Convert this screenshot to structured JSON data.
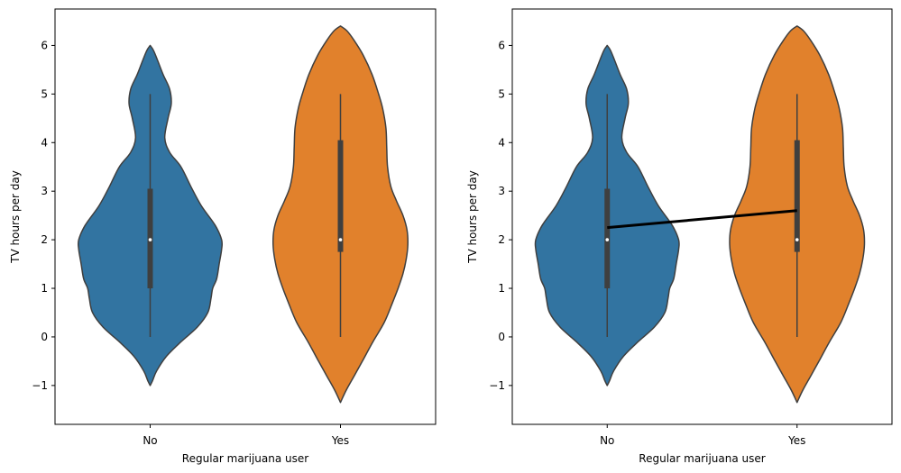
{
  "chart_data": [
    {
      "type": "violin",
      "xlabel": "Regular marijuana user",
      "ylabel": "TV hours per day",
      "categories": [
        "No",
        "Yes"
      ],
      "ylim": [
        -1.8,
        6.75
      ],
      "yticks": [
        "−1",
        "0",
        "1",
        "2",
        "3",
        "4",
        "5",
        "6"
      ],
      "colors": [
        "#3274a1",
        "#e1812c"
      ],
      "violins": [
        {
          "category": "No",
          "min": -1.0,
          "max": 6.0,
          "median": 2.0,
          "q1": 1.0,
          "q3": 3.05,
          "whisker_low": 0.0,
          "whisker_high": 5.0,
          "density": [
            [
              -1.0,
              0.0
            ],
            [
              -0.9,
              0.03
            ],
            [
              -0.7,
              0.08
            ],
            [
              -0.4,
              0.2
            ],
            [
              -0.1,
              0.38
            ],
            [
              0.2,
              0.58
            ],
            [
              0.5,
              0.71
            ],
            [
              0.8,
              0.75
            ],
            [
              1.0,
              0.77
            ],
            [
              1.2,
              0.82
            ],
            [
              1.5,
              0.85
            ],
            [
              1.8,
              0.88
            ],
            [
              2.0,
              0.88
            ],
            [
              2.3,
              0.8
            ],
            [
              2.7,
              0.63
            ],
            [
              3.1,
              0.5
            ],
            [
              3.5,
              0.38
            ],
            [
              3.8,
              0.24
            ],
            [
              4.1,
              0.18
            ],
            [
              4.5,
              0.22
            ],
            [
              4.8,
              0.26
            ],
            [
              5.1,
              0.24
            ],
            [
              5.4,
              0.16
            ],
            [
              5.7,
              0.09
            ],
            [
              5.9,
              0.04
            ],
            [
              6.0,
              0.0
            ]
          ]
        },
        {
          "category": "Yes",
          "min": -1.35,
          "max": 6.4,
          "median": 2.0,
          "q1": 1.75,
          "q3": 4.05,
          "whisker_low": 0.0,
          "whisker_high": 5.0,
          "density": [
            [
              -1.35,
              0.0
            ],
            [
              -1.1,
              0.07
            ],
            [
              -0.8,
              0.17
            ],
            [
              -0.5,
              0.27
            ],
            [
              -0.1,
              0.4
            ],
            [
              0.3,
              0.54
            ],
            [
              0.7,
              0.64
            ],
            [
              1.0,
              0.71
            ],
            [
              1.3,
              0.77
            ],
            [
              1.6,
              0.81
            ],
            [
              1.9,
              0.83
            ],
            [
              2.2,
              0.82
            ],
            [
              2.5,
              0.77
            ],
            [
              2.8,
              0.69
            ],
            [
              3.1,
              0.62
            ],
            [
              3.5,
              0.58
            ],
            [
              3.9,
              0.57
            ],
            [
              4.3,
              0.56
            ],
            [
              4.7,
              0.52
            ],
            [
              5.0,
              0.47
            ],
            [
              5.4,
              0.39
            ],
            [
              5.8,
              0.28
            ],
            [
              6.1,
              0.17
            ],
            [
              6.3,
              0.08
            ],
            [
              6.4,
              0.0
            ]
          ]
        }
      ]
    },
    {
      "type": "violin",
      "xlabel": "Regular marijuana user",
      "ylabel": "TV hours per day",
      "categories": [
        "No",
        "Yes"
      ],
      "ylim": [
        -1.8,
        6.75
      ],
      "yticks": [
        "−1",
        "0",
        "1",
        "2",
        "3",
        "4",
        "5",
        "6"
      ],
      "colors": [
        "#3274a1",
        "#e1812c"
      ],
      "violins": [
        {
          "category": "No",
          "min": -1.0,
          "max": 6.0,
          "median": 2.0,
          "q1": 1.0,
          "q3": 3.05,
          "whisker_low": 0.0,
          "whisker_high": 5.0,
          "density": [
            [
              -1.0,
              0.0
            ],
            [
              -0.9,
              0.03
            ],
            [
              -0.7,
              0.08
            ],
            [
              -0.4,
              0.2
            ],
            [
              -0.1,
              0.38
            ],
            [
              0.2,
              0.58
            ],
            [
              0.5,
              0.71
            ],
            [
              0.8,
              0.75
            ],
            [
              1.0,
              0.77
            ],
            [
              1.2,
              0.82
            ],
            [
              1.5,
              0.85
            ],
            [
              1.8,
              0.88
            ],
            [
              2.0,
              0.88
            ],
            [
              2.3,
              0.8
            ],
            [
              2.7,
              0.63
            ],
            [
              3.1,
              0.5
            ],
            [
              3.5,
              0.38
            ],
            [
              3.8,
              0.24
            ],
            [
              4.1,
              0.18
            ],
            [
              4.5,
              0.22
            ],
            [
              4.8,
              0.26
            ],
            [
              5.1,
              0.24
            ],
            [
              5.4,
              0.16
            ],
            [
              5.7,
              0.09
            ],
            [
              5.9,
              0.04
            ],
            [
              6.0,
              0.0
            ]
          ]
        },
        {
          "category": "Yes",
          "min": -1.35,
          "max": 6.4,
          "median": 2.0,
          "q1": 1.75,
          "q3": 4.05,
          "whisker_low": 0.0,
          "whisker_high": 5.0,
          "density": [
            [
              -1.35,
              0.0
            ],
            [
              -1.1,
              0.07
            ],
            [
              -0.8,
              0.17
            ],
            [
              -0.5,
              0.27
            ],
            [
              -0.1,
              0.4
            ],
            [
              0.3,
              0.54
            ],
            [
              0.7,
              0.64
            ],
            [
              1.0,
              0.71
            ],
            [
              1.3,
              0.77
            ],
            [
              1.6,
              0.81
            ],
            [
              1.9,
              0.83
            ],
            [
              2.2,
              0.82
            ],
            [
              2.5,
              0.77
            ],
            [
              2.8,
              0.69
            ],
            [
              3.1,
              0.62
            ],
            [
              3.5,
              0.58
            ],
            [
              3.9,
              0.57
            ],
            [
              4.3,
              0.56
            ],
            [
              4.7,
              0.52
            ],
            [
              5.0,
              0.47
            ],
            [
              5.4,
              0.39
            ],
            [
              5.8,
              0.28
            ],
            [
              6.1,
              0.17
            ],
            [
              6.3,
              0.08
            ],
            [
              6.4,
              0.0
            ]
          ]
        }
      ],
      "mean_line": {
        "color": "#000000",
        "points": [
          [
            "No",
            2.25
          ],
          [
            "Yes",
            2.6
          ]
        ]
      }
    }
  ]
}
